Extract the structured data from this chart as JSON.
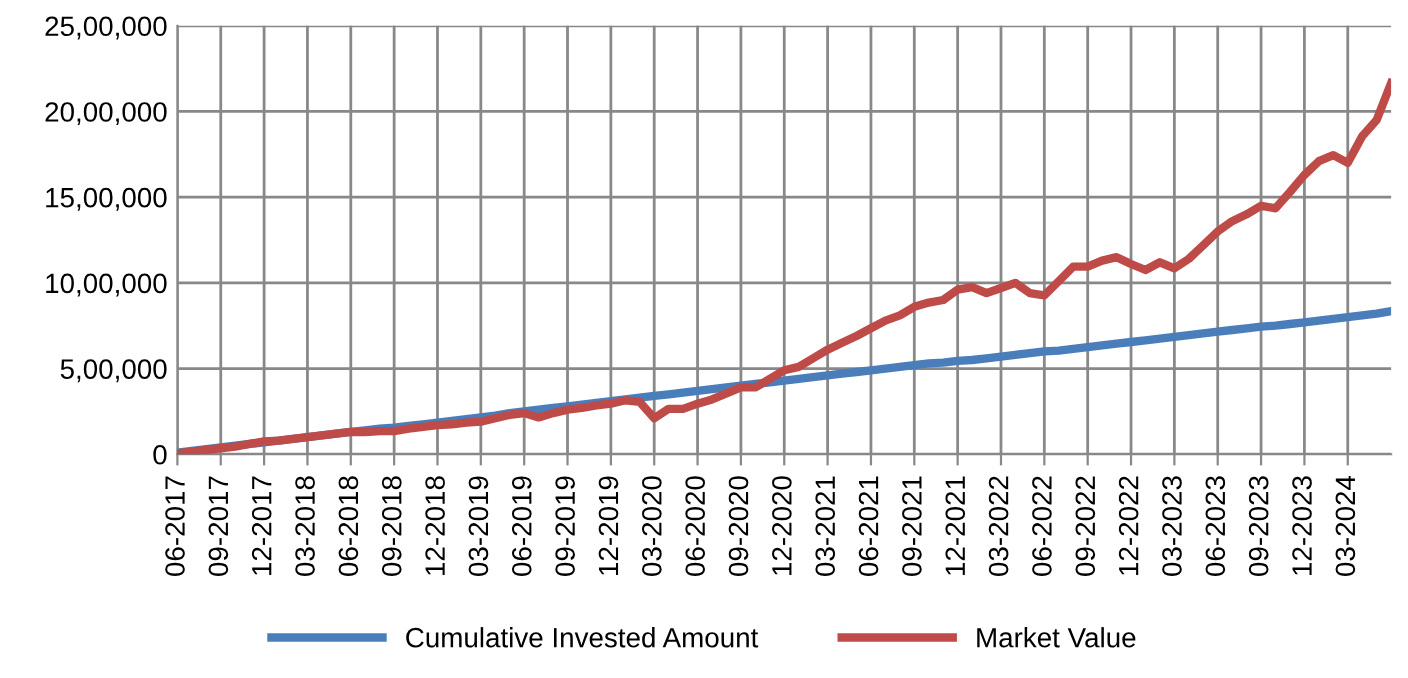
{
  "chart_data": {
    "type": "line",
    "categories": [
      "06-2017",
      null,
      null,
      "09-2017",
      null,
      null,
      "12-2017",
      null,
      null,
      "03-2018",
      null,
      null,
      "06-2018",
      null,
      null,
      "09-2018",
      null,
      null,
      "12-2018",
      null,
      null,
      "03-2019",
      null,
      null,
      "06-2019",
      null,
      null,
      "09-2019",
      null,
      null,
      "12-2019",
      null,
      null,
      "03-2020",
      null,
      null,
      "06-2020",
      null,
      null,
      "09-2020",
      null,
      null,
      "12-2020",
      null,
      null,
      "03-2021",
      null,
      null,
      "06-2021",
      null,
      null,
      "09-2021",
      null,
      null,
      "12-2021",
      null,
      null,
      "03-2022",
      null,
      null,
      "06-2022",
      null,
      null,
      "09-2022",
      null,
      null,
      "12-2022",
      null,
      null,
      "03-2023",
      null,
      null,
      "06-2023",
      null,
      null,
      "09-2023",
      null,
      null,
      "12-2023",
      null,
      null,
      "03-2024",
      null,
      null,
      null
    ],
    "series": [
      {
        "name": "Cumulative Invested Amount",
        "color": "#4a7ebb",
        "values": [
          10000,
          20000,
          30000,
          40000,
          50000,
          60000,
          70000,
          80000,
          90000,
          100000,
          110000,
          120000,
          130000,
          140000,
          150000,
          155000,
          165000,
          175000,
          185000,
          195000,
          205000,
          215000,
          225000,
          240000,
          250000,
          260000,
          270000,
          280000,
          290000,
          300000,
          310000,
          320000,
          330000,
          340000,
          350000,
          360000,
          370000,
          380000,
          390000,
          400000,
          410000,
          420000,
          430000,
          440000,
          450000,
          460000,
          470000,
          480000,
          490000,
          500000,
          510000,
          520000,
          530000,
          535000,
          545000,
          550000,
          560000,
          570000,
          580000,
          590000,
          600000,
          605000,
          615000,
          625000,
          635000,
          645000,
          655000,
          665000,
          675000,
          685000,
          695000,
          705000,
          715000,
          725000,
          735000,
          745000,
          750000,
          760000,
          770000,
          780000,
          790000,
          800000,
          810000,
          820000,
          835000
        ]
      },
      {
        "name": "Market Value",
        "color": "#be4b48",
        "values": [
          5000,
          15000,
          25000,
          35000,
          45000,
          60000,
          75000,
          80000,
          90000,
          100000,
          110000,
          120000,
          130000,
          130000,
          135000,
          135000,
          150000,
          160000,
          170000,
          175000,
          185000,
          190000,
          210000,
          230000,
          240000,
          215000,
          240000,
          260000,
          270000,
          285000,
          295000,
          315000,
          305000,
          210000,
          265000,
          265000,
          295000,
          320000,
          355000,
          390000,
          390000,
          440000,
          490000,
          510000,
          560000,
          610000,
          650000,
          690000,
          735000,
          780000,
          810000,
          860000,
          885000,
          900000,
          960000,
          975000,
          940000,
          970000,
          1000000,
          940000,
          927000,
          1010000,
          1095000,
          1095000,
          1130000,
          1150000,
          1110000,
          1075000,
          1120000,
          1085000,
          1140000,
          1220000,
          1300000,
          1360000,
          1400000,
          1450000,
          1435000,
          1530000,
          1630000,
          1710000,
          1745000,
          1700000,
          1855000,
          1950000,
          2165000
        ]
      }
    ],
    "ylim": [
      0,
      2500000
    ],
    "yticks": [
      0,
      {
        "value": 500000,
        "label": "5,00,000"
      },
      {
        "value": 1000000,
        "label": "10,00,000"
      },
      {
        "value": 1500000,
        "label": "15,00,000"
      },
      {
        "value": 2000000,
        "label": "20,00,000"
      },
      {
        "value": 2500000,
        "label": "25,00,000"
      }
    ],
    "grid": true,
    "legend": "bottom",
    "marker": "none",
    "line_style": "solid"
  }
}
